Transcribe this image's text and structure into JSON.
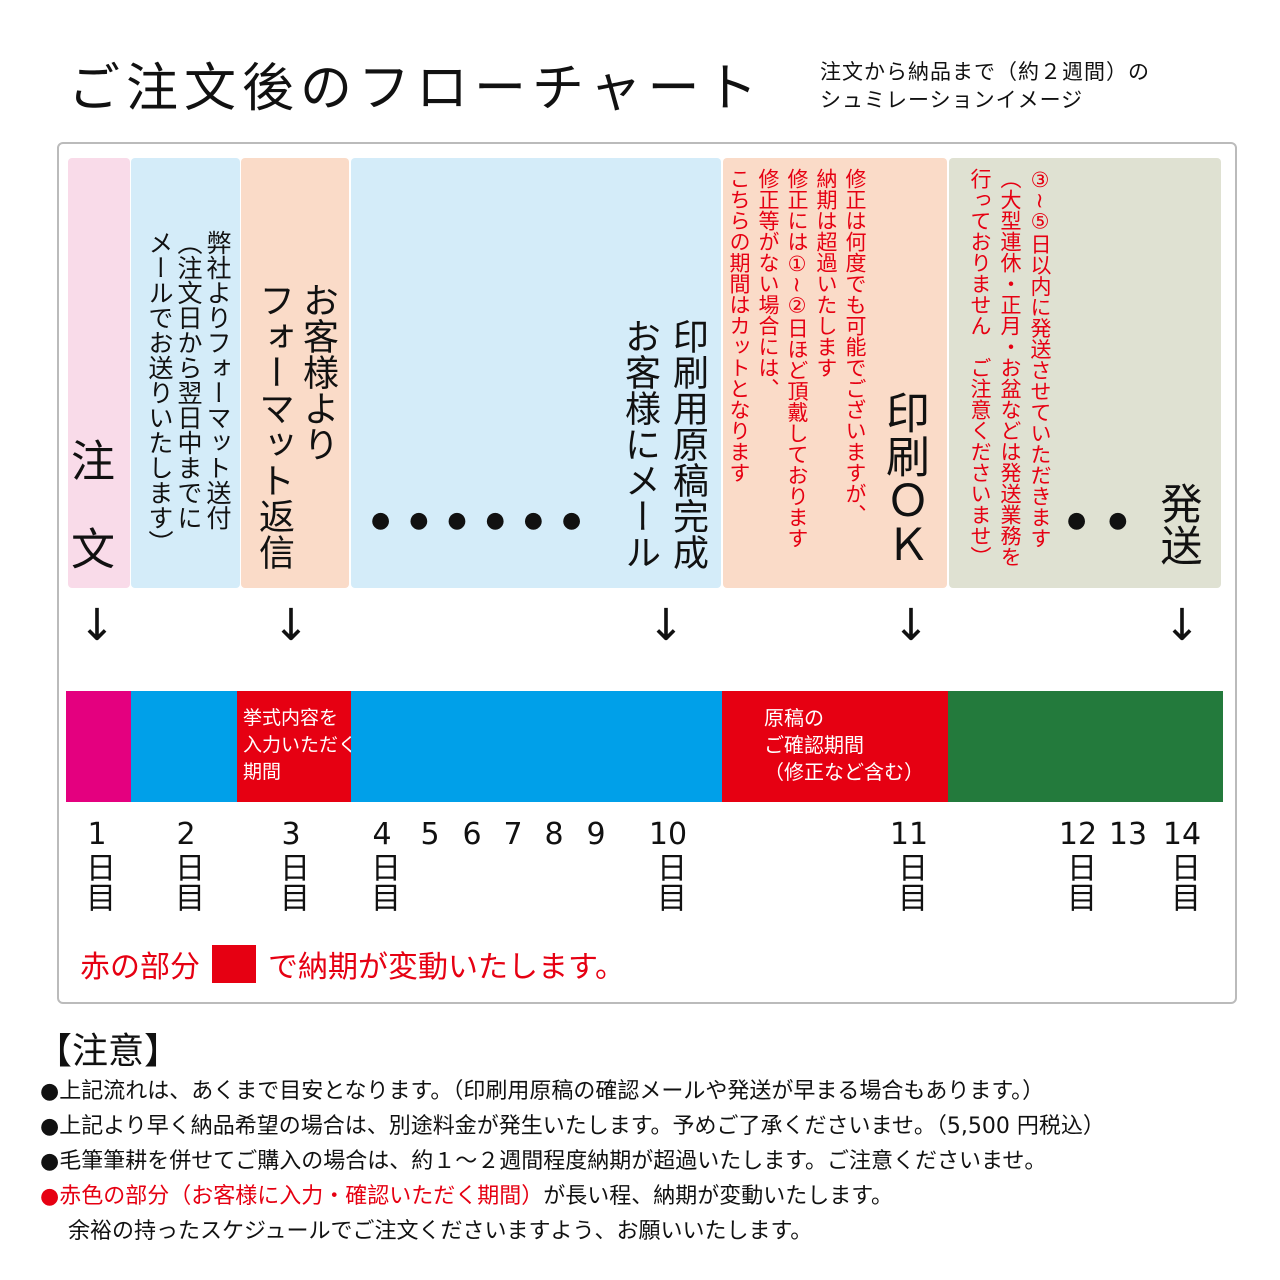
{
  "title": "ご注文後のフローチャート",
  "subtitle": [
    "注文から納品まで（約２週間）の",
    "シュミレーションイメージ"
  ],
  "colors": {
    "pink": "#f9dbe9",
    "light_blue": "#d4ecf9",
    "peach": "#fadbc8",
    "sage": "#dfe1d2",
    "magenta": "#e4007f",
    "blue": "#00a0e9",
    "red": "#e60012",
    "green": "#237a3c"
  },
  "columns": {
    "order": "注　文",
    "format_send": "弊社よりフォーマット送付\n（注文日から翌日中までに\nメールでお送りいたします）",
    "format_reply": "お客様より\nフォーマット返信",
    "dots_1": "●●●●●●",
    "proof_mail": "印刷用原稿完成\nお客様にメール",
    "proof_note": "修正は何度でも可能でございますが、\n納期は超過いたします\n修正には①~②日ほど頂戴しております\n修正等がない場合には、\nこちらの期間はカットとなります",
    "print_ok": "印刷ＯＫ",
    "ship_note": "③~⑤日以内に発送させていただきます\n（大型連休・正月・お盆などは発送業務を\n行っておりません　ご注意くださいませ）",
    "dots_2": "●●",
    "ship": "発送"
  },
  "arrow_icon": "↓",
  "bar": {
    "input_period": "挙式内容を\n入力いただく\n期間",
    "confirm_period": "原稿の\nご確認期間\n（修正など含む）"
  },
  "days": [
    {
      "n": "1",
      "u": "日目"
    },
    {
      "n": "2",
      "u": "日目"
    },
    {
      "n": "3",
      "u": "日目"
    },
    {
      "n": "4",
      "u": "日目"
    },
    {
      "n": "5",
      "u": ""
    },
    {
      "n": "6",
      "u": ""
    },
    {
      "n": "7",
      "u": ""
    },
    {
      "n": "8",
      "u": ""
    },
    {
      "n": "9",
      "u": ""
    },
    {
      "n": "10",
      "u": "日目"
    },
    {
      "n": "11",
      "u": "日目"
    },
    {
      "n": "12",
      "u": "日目"
    },
    {
      "n": "13",
      "u": ""
    },
    {
      "n": "14",
      "u": "日目"
    }
  ],
  "legend": {
    "before": "赤の部分",
    "after": "で納期が変動いたします。"
  },
  "notes": {
    "heading": "【注意】",
    "items": [
      "●上記流れは、あくまで目安となります。（印刷用原稿の確認メールや発送が早まる場合もあります。）",
      "●上記より早く納品希望の場合は、別途料金が発生いたします。予めご了承くださいませ。（5,500 円税込）",
      "●毛筆筆耕を併せてご購入の場合は、約１～２週間程度納期が超過いたします。ご注意くださいませ。"
    ],
    "last_bullet": "●",
    "last_red": "赤色の部分（お客様に入力・確認いただく期間）",
    "last_rest": "が長い程、納期が変動いたします。",
    "last_line2": "余裕の持ったスケジュールでご注文くださいますよう、お願いいたします。"
  }
}
